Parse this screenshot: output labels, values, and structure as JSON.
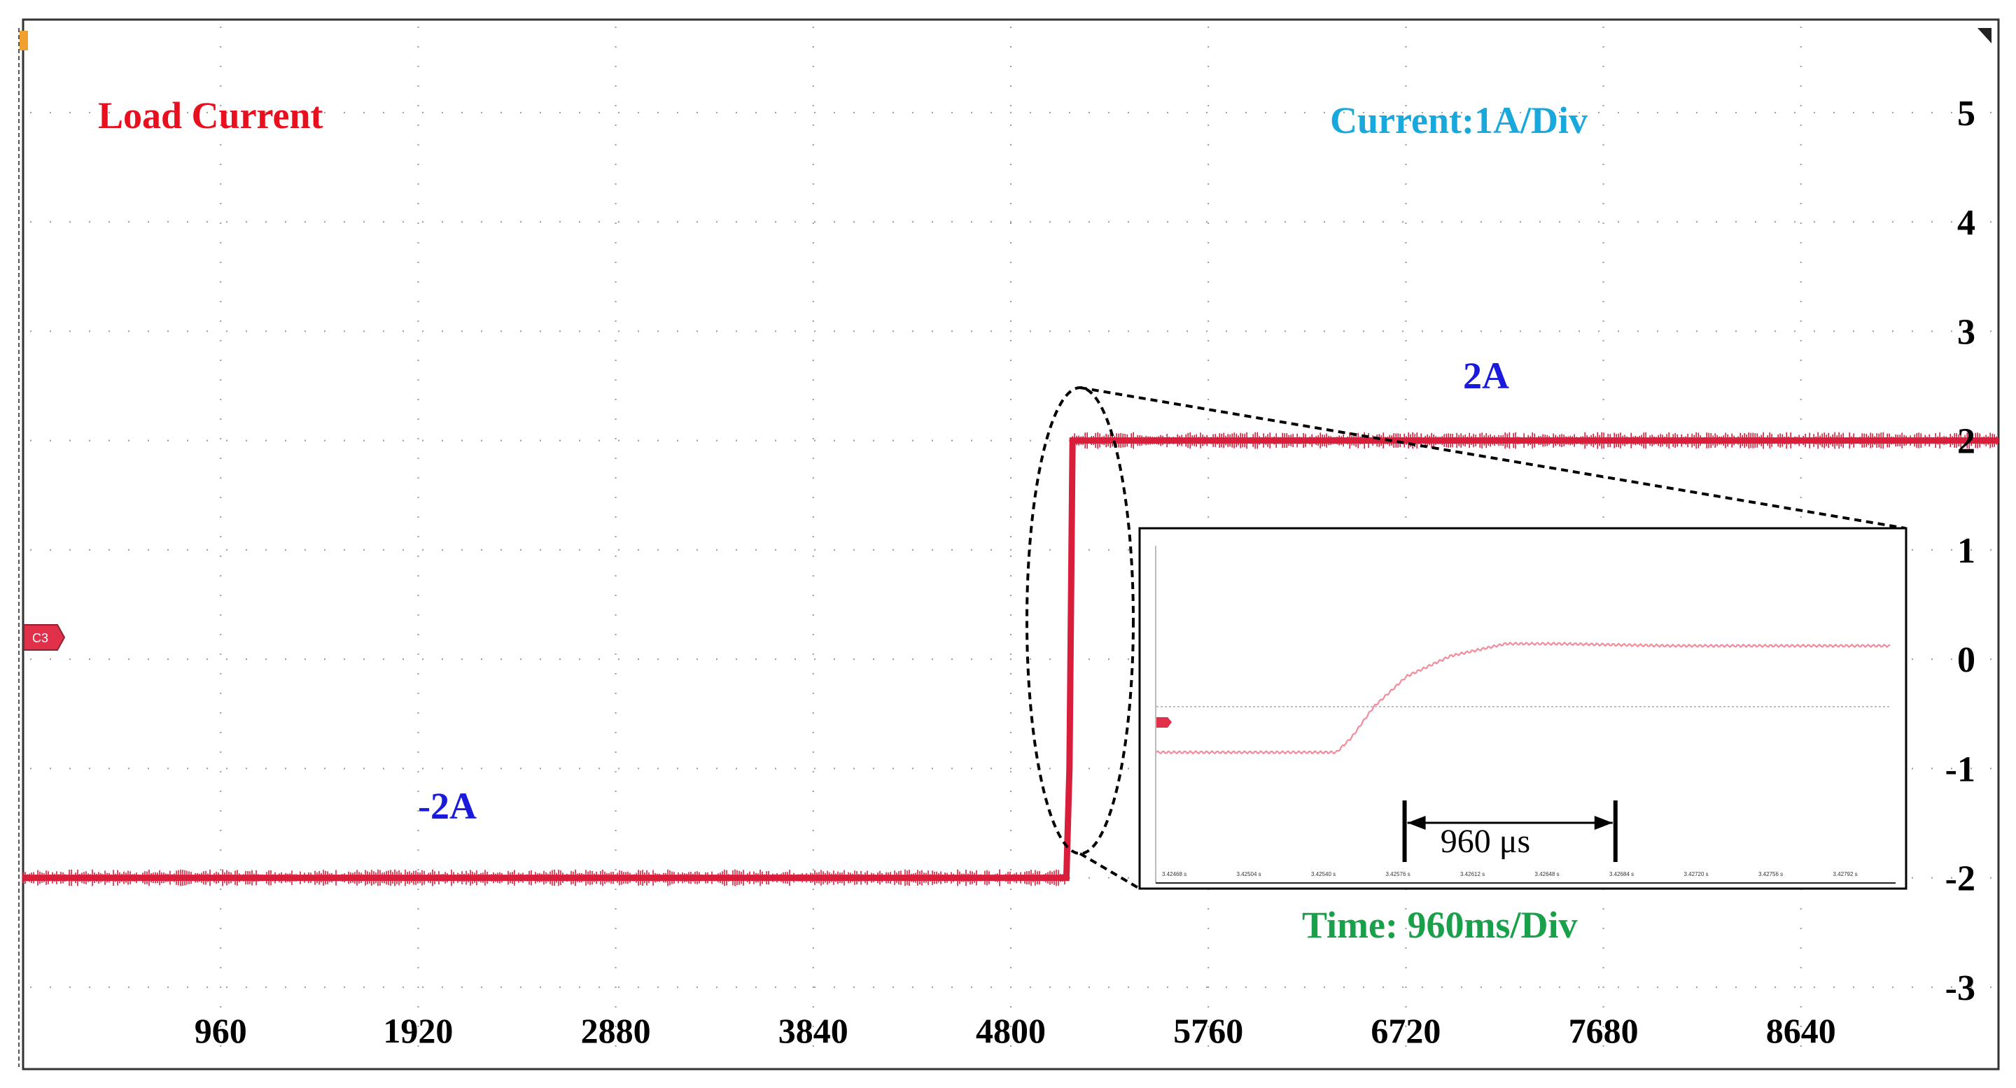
{
  "colors": {
    "trace": "#d81e3a",
    "trace_inset": "#f28c9c",
    "title": "#e8101e",
    "scale_label": "#18a8dc",
    "level_label": "#1a1adc",
    "time_label": "#1aa04a",
    "grid": "#9a9a9a",
    "text": "#000000"
  },
  "labels": {
    "title": "Load Current",
    "current_scale": "Current:1A/Div",
    "time_scale": "Time: 960ms/Div",
    "low_level": "-2A",
    "high_level": "2A",
    "channel_marker": "C3",
    "inset_channel_marker": "C3",
    "inset_interval": "960 μs"
  },
  "chart_data": {
    "type": "line",
    "xlabel": "",
    "ylabel": "",
    "x_tick_labels": [
      "960",
      "1920",
      "2880",
      "3840",
      "4800",
      "5760",
      "6720",
      "7680",
      "8640"
    ],
    "x_ticks": [
      960,
      1920,
      2880,
      3840,
      4800,
      5760,
      6720,
      7680,
      8640
    ],
    "y_ticks": [
      5,
      4,
      3,
      2,
      1,
      0,
      -1,
      -2,
      -3
    ],
    "xlim": [
      0,
      9600
    ],
    "ylim": [
      -3.75,
      5.85
    ],
    "grid": true,
    "series": [
      {
        "x": [
          0,
          5070,
          5085,
          5100,
          9600
        ],
        "y": [
          -2,
          -2,
          -1,
          2,
          2
        ]
      }
    ],
    "inset": {
      "x_tick_labels": [
        "3.42468 s",
        "3.42504 s",
        "3.42540 s",
        "3.42576 s",
        "3.42612 s",
        "3.42648 s",
        "3.42684 s",
        "3.42720 s",
        "3.42756 s",
        "3.42792 s"
      ],
      "x": [
        3.42466,
        3.42548,
        3.42555,
        3.42565,
        3.4258,
        3.426,
        3.42625,
        3.4265,
        3.427,
        3.4275,
        3.428
      ],
      "y": [
        -0.45,
        -0.45,
        -0.3,
        0.0,
        0.3,
        0.5,
        0.62,
        0.62,
        0.6,
        0.6,
        0.6
      ],
      "baseline_y": 0,
      "interval_start": 3.42579,
      "interval_end": 3.42675
    }
  }
}
